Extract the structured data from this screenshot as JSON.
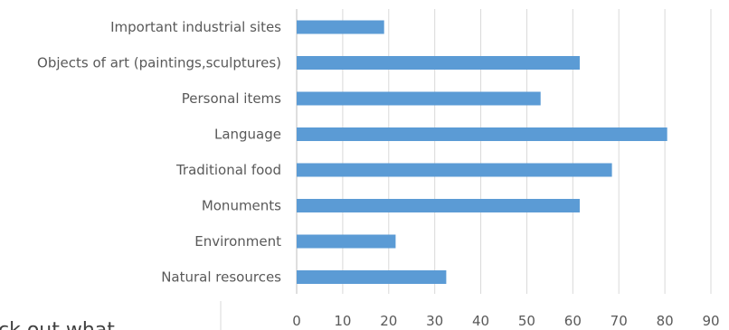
{
  "chart_data": {
    "type": "bar",
    "orientation": "horizontal",
    "categories": [
      "Important industrial sites",
      "Objects of art (paintings,sculptures)",
      "Personal items",
      "Language",
      "Traditional food",
      "Monuments",
      "Environment",
      "Natural resources"
    ],
    "values": [
      19,
      61.5,
      53,
      80.5,
      68.5,
      61.5,
      21.5,
      32.5
    ],
    "xticks": [
      0,
      10,
      20,
      30,
      40,
      50,
      60,
      70,
      80,
      90
    ],
    "xlim": [
      0,
      90
    ],
    "bar_color": "#5b9bd5",
    "grid": true,
    "title": "",
    "xlabel": "",
    "ylabel": ""
  },
  "partial_text": "ck out what"
}
